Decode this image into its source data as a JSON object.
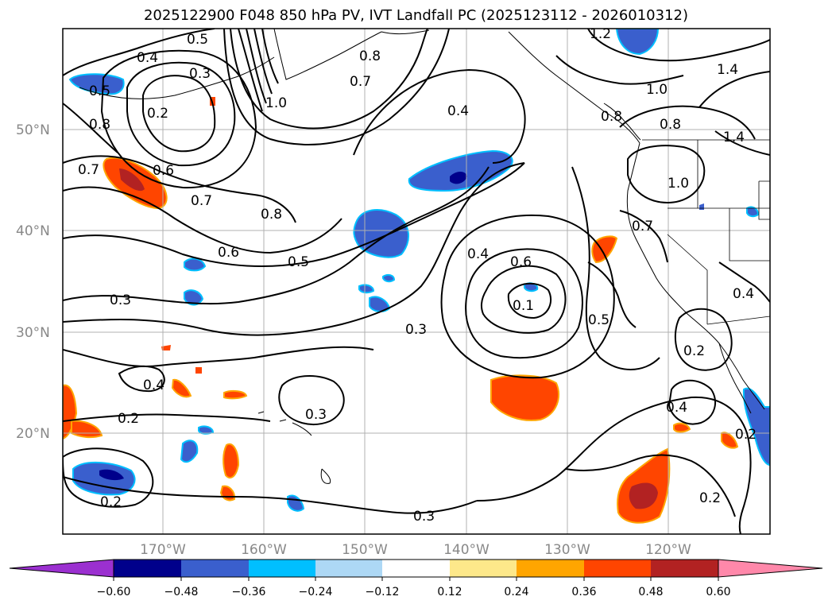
{
  "title": "2025122900 F048 850 hPa PV, IVT Landfall PC (2025123112 - 2026010312)",
  "map": {
    "lat_labels": [
      "50°N",
      "40°N",
      "30°N",
      "20°N"
    ],
    "lon_labels": [
      "170°W",
      "160°W",
      "150°W",
      "140°W",
      "130°W",
      "120°W"
    ],
    "contour_labels": [
      "0.5",
      "0.4",
      "0.3",
      "0.2",
      "0.5",
      "0.8",
      "0.7",
      "0.6",
      "0.7",
      "0.8",
      "0.6",
      "0.5",
      "0.4",
      "0.4",
      "0.6",
      "0.1",
      "0.5",
      "0.3",
      "0.4",
      "0.2",
      "0.3",
      "0.2",
      "0.2",
      "0.3",
      "0.2",
      "0.4",
      "0.2",
      "0.4",
      "1.0",
      "0.8",
      "1.0",
      "0.8",
      "1.4",
      "1.4",
      "1.2",
      "0.7",
      "0.8",
      "1.0",
      "0.7",
      "0.3"
    ]
  },
  "colorbar": {
    "ticks": [
      "−0.60",
      "−0.48",
      "−0.36",
      "−0.24",
      "−0.12",
      "0.12",
      "0.24",
      "0.36",
      "0.48",
      "0.60"
    ],
    "colors": [
      "#9b30d0",
      "#00008b",
      "#3a5fcd",
      "#00bfff",
      "#add8f5",
      "#ffffff",
      "#fde88a",
      "#ffa500",
      "#ff4500",
      "#b22222",
      "#ff88aa"
    ]
  }
}
